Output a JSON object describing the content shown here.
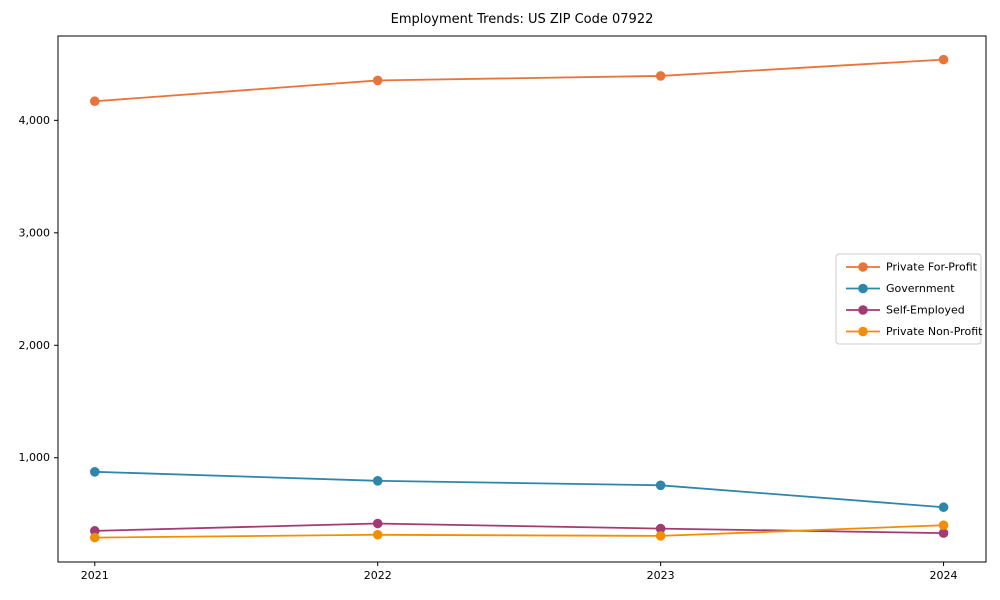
{
  "chart_data": {
    "type": "line",
    "title": "Employment Trends: US ZIP Code 07922",
    "x": [
      2021,
      2022,
      2023,
      2024
    ],
    "x_tick_labels": [
      "2021",
      "2022",
      "2023",
      "2024"
    ],
    "y_ticks": [
      1000,
      2000,
      3000,
      4000
    ],
    "y_tick_labels": [
      "1,000",
      "2,000",
      "3,000",
      "4,000"
    ],
    "xlim": [
      2020.87,
      2024.15
    ],
    "ylim": [
      73,
      4750
    ],
    "grid": false,
    "legend_position": "center-right",
    "background_color": "#ffffff",
    "spine_color": "#000000",
    "legend_border_color": "#cccccc",
    "series": [
      {
        "name": "Private For-Profit",
        "color": "#E8743B",
        "values": [
          4170,
          4355,
          4395,
          4540
        ]
      },
      {
        "name": "Government",
        "color": "#2E86AB",
        "values": [
          875,
          795,
          755,
          560
        ]
      },
      {
        "name": "Self-Employed",
        "color": "#A23B72",
        "values": [
          350,
          415,
          370,
          330
        ]
      },
      {
        "name": "Private Non-Profit",
        "color": "#F18F01",
        "values": [
          290,
          315,
          305,
          400
        ]
      }
    ]
  }
}
